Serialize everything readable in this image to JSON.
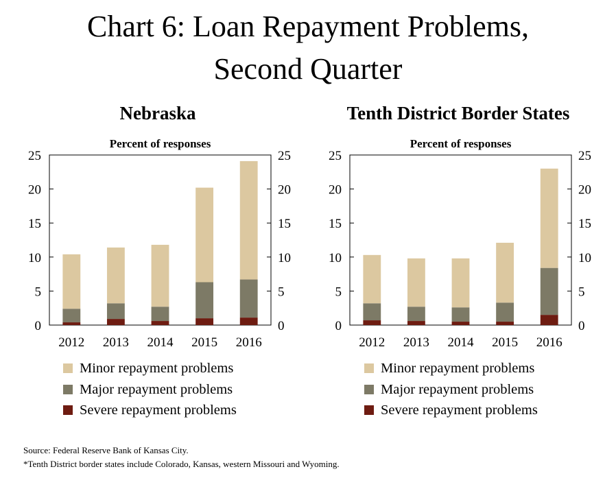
{
  "title": [
    "Chart 6: Loan Repayment Problems,",
    "Second Quarter"
  ],
  "colors": {
    "minor": "#dcc8a0",
    "major": "#7d7a66",
    "severe": "#6e1c11"
  },
  "legend": [
    "Minor repayment problems",
    "Major repayment problems",
    "Severe repayment problems"
  ],
  "source": "Source: Federal Reserve Bank of  Kansas City.",
  "footnote": "*Tenth District border states include Colorado, Kansas, western Missouri and Wyoming.",
  "chart_data": [
    {
      "type": "bar",
      "stacked": true,
      "title": "Nebraska",
      "ylabel": "Percent of responses",
      "categories": [
        "2012",
        "2013",
        "2014",
        "2015",
        "2016"
      ],
      "ylim": [
        0,
        25
      ],
      "yticks": [
        "0",
        "5",
        "10",
        "15",
        "20",
        "25"
      ],
      "series": [
        {
          "name": "Severe repayment problems",
          "values": [
            0.4,
            0.9,
            0.6,
            1.0,
            1.1
          ]
        },
        {
          "name": "Major repayment problems",
          "values": [
            2.0,
            2.3,
            2.1,
            5.3,
            5.6
          ]
        },
        {
          "name": "Minor repayment problems",
          "values": [
            8.0,
            8.2,
            9.1,
            13.9,
            17.4
          ]
        }
      ]
    },
    {
      "type": "bar",
      "stacked": true,
      "title": "Tenth District Border States",
      "ylabel": "Percent of responses",
      "categories": [
        "2012",
        "2013",
        "2014",
        "2015",
        "2016"
      ],
      "ylim": [
        0,
        25
      ],
      "yticks": [
        "0",
        "5",
        "10",
        "15",
        "20",
        "25"
      ],
      "series": [
        {
          "name": "Severe repayment problems",
          "values": [
            0.7,
            0.6,
            0.5,
            0.5,
            1.5
          ]
        },
        {
          "name": "Major repayment problems",
          "values": [
            2.5,
            2.1,
            2.1,
            2.8,
            6.9
          ]
        },
        {
          "name": "Minor repayment problems",
          "values": [
            7.1,
            7.1,
            7.2,
            8.8,
            14.6
          ]
        }
      ]
    }
  ]
}
